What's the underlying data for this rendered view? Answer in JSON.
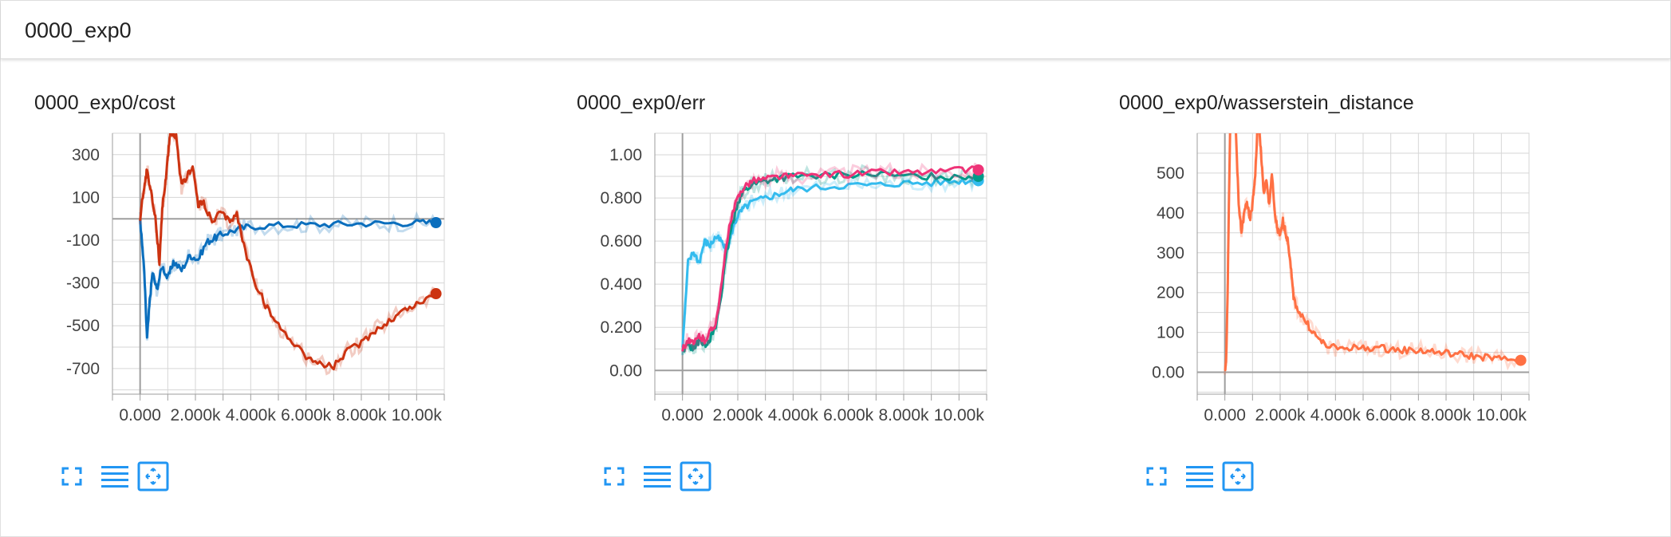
{
  "run_name": "0000_exp0",
  "colors": {
    "grid": "#d6d6d6",
    "axis": "#9e9e9e",
    "tick_text": "#424242",
    "button": "#2196f3"
  },
  "icons": [
    "fullscreen-icon",
    "list-icon",
    "fit-domain-icon"
  ],
  "chart_data": [
    {
      "type": "line",
      "title": "0000_exp0/cost",
      "xlabel": "",
      "ylabel": "",
      "xlim": [
        -1000,
        11000
      ],
      "ylim": [
        -820,
        400
      ],
      "x_ticks": [
        0,
        2000,
        4000,
        6000,
        8000,
        10000
      ],
      "x_tick_labels": [
        "0.000",
        "2.000k",
        "4.000k",
        "6.000k",
        "8.000k",
        "10.00k"
      ],
      "y_ticks": [
        300,
        100,
        -100,
        -300,
        -500,
        -700
      ],
      "y_tick_labels": [
        "300",
        "100",
        "-100",
        "-300",
        "-500",
        "-700"
      ],
      "grid": true,
      "series": [
        {
          "color": "#0a6ebd",
          "x": [
            0,
            150,
            250,
            350,
            450,
            600,
            800,
            1000,
            1200,
            1500,
            1800,
            2100,
            2400,
            2700,
            3000,
            3500,
            4000,
            5000,
            6000,
            7000,
            8000,
            9000,
            10000,
            10700
          ],
          "y": [
            0,
            -250,
            -560,
            -380,
            -250,
            -330,
            -220,
            -280,
            -200,
            -240,
            -170,
            -190,
            -110,
            -90,
            -70,
            -50,
            -35,
            -30,
            -28,
            -25,
            -22,
            -20,
            -18,
            -18
          ]
        },
        {
          "color": "#cc3311",
          "x": [
            0,
            150,
            250,
            400,
            550,
            700,
            800,
            900,
            1000,
            1100,
            1300,
            1500,
            1700,
            1900,
            2100,
            2300,
            2600,
            2900,
            3200,
            3500,
            3800,
            4200,
            4600,
            5000,
            5500,
            6000,
            6500,
            7000,
            7500,
            8000,
            8500,
            9000,
            9500,
            10000,
            10700
          ],
          "y": [
            0,
            150,
            230,
            120,
            0,
            -200,
            50,
            150,
            290,
            400,
            380,
            150,
            200,
            250,
            60,
            80,
            -20,
            30,
            -10,
            20,
            -150,
            -310,
            -420,
            -500,
            -570,
            -640,
            -680,
            -690,
            -620,
            -580,
            -520,
            -480,
            -430,
            -400,
            -350
          ]
        }
      ]
    },
    {
      "type": "line",
      "title": "0000_exp0/err",
      "xlabel": "",
      "ylabel": "",
      "xlim": [
        -1000,
        11000
      ],
      "ylim": [
        -0.11,
        1.1
      ],
      "x_ticks": [
        0,
        2000,
        4000,
        6000,
        8000,
        10000
      ],
      "x_tick_labels": [
        "0.000",
        "2.000k",
        "4.000k",
        "6.000k",
        "8.000k",
        "10.00k"
      ],
      "y_ticks": [
        1.0,
        0.8,
        0.6,
        0.4,
        0.2,
        0.0
      ],
      "y_tick_labels": [
        "1.00",
        "0.800",
        "0.600",
        "0.400",
        "0.200",
        "0.00"
      ],
      "grid": true,
      "series": [
        {
          "color": "#33bbee",
          "x": [
            0,
            200,
            400,
            600,
            800,
            1000,
            1200,
            1400,
            1600,
            1800,
            2000,
            2200,
            2500,
            3000,
            3500,
            4000,
            5000,
            6000,
            7000,
            8000,
            9000,
            10000,
            10700
          ],
          "y": [
            0.1,
            0.5,
            0.55,
            0.5,
            0.6,
            0.58,
            0.62,
            0.6,
            0.55,
            0.65,
            0.72,
            0.75,
            0.78,
            0.8,
            0.82,
            0.84,
            0.85,
            0.86,
            0.86,
            0.87,
            0.87,
            0.88,
            0.88
          ]
        },
        {
          "color": "#009988",
          "x": [
            0,
            200,
            400,
            600,
            800,
            1000,
            1200,
            1400,
            1600,
            1800,
            2000,
            2200,
            2500,
            3000,
            3500,
            4000,
            5000,
            6000,
            7000,
            8000,
            9000,
            10000,
            10700
          ],
          "y": [
            0.08,
            0.12,
            0.1,
            0.14,
            0.12,
            0.15,
            0.2,
            0.35,
            0.55,
            0.68,
            0.78,
            0.83,
            0.86,
            0.88,
            0.89,
            0.9,
            0.9,
            0.91,
            0.91,
            0.9,
            0.9,
            0.9,
            0.9
          ]
        },
        {
          "color": "#ee3377",
          "x": [
            0,
            200,
            400,
            600,
            800,
            1000,
            1200,
            1400,
            1600,
            1800,
            2000,
            2200,
            2500,
            3000,
            3500,
            4000,
            5000,
            6000,
            7000,
            8000,
            9000,
            10000,
            10700
          ],
          "y": [
            0.1,
            0.14,
            0.12,
            0.16,
            0.14,
            0.18,
            0.22,
            0.38,
            0.6,
            0.72,
            0.8,
            0.85,
            0.88,
            0.89,
            0.9,
            0.9,
            0.91,
            0.91,
            0.92,
            0.92,
            0.92,
            0.93,
            0.93
          ]
        }
      ]
    },
    {
      "type": "line",
      "title": "0000_exp0/wasserstein_distance",
      "xlabel": "",
      "ylabel": "",
      "xlim": [
        -1000,
        11000
      ],
      "ylim": [
        -55,
        600
      ],
      "x_ticks": [
        0,
        2000,
        4000,
        6000,
        8000,
        10000
      ],
      "x_tick_labels": [
        "0.000",
        "2.000k",
        "4.000k",
        "6.000k",
        "8.000k",
        "10.00k"
      ],
      "y_ticks": [
        500,
        400,
        300,
        200,
        100,
        0
      ],
      "y_tick_labels": [
        "500",
        "400",
        "300",
        "200",
        "100",
        "0.00"
      ],
      "grid": true,
      "series": [
        {
          "color": "#ff7043",
          "x": [
            0,
            50,
            100,
            150,
            200,
            300,
            400,
            500,
            600,
            700,
            800,
            900,
            1000,
            1100,
            1200,
            1300,
            1400,
            1500,
            1600,
            1700,
            1800,
            1900,
            2000,
            2100,
            2200,
            2300,
            2400,
            2500,
            2700,
            3000,
            3300,
            3600,
            4000,
            4500,
            5000,
            5500,
            6000,
            6500,
            7000,
            7500,
            8000,
            8500,
            9000,
            9500,
            10000,
            10700
          ],
          "y": [
            0,
            40,
            200,
            450,
            650,
            700,
            600,
            420,
            350,
            400,
            430,
            380,
            420,
            500,
            640,
            560,
            450,
            480,
            420,
            500,
            400,
            360,
            340,
            380,
            350,
            320,
            250,
            180,
            150,
            120,
            90,
            70,
            60,
            62,
            60,
            62,
            58,
            55,
            55,
            52,
            48,
            45,
            40,
            38,
            33,
            30
          ]
        }
      ]
    }
  ]
}
